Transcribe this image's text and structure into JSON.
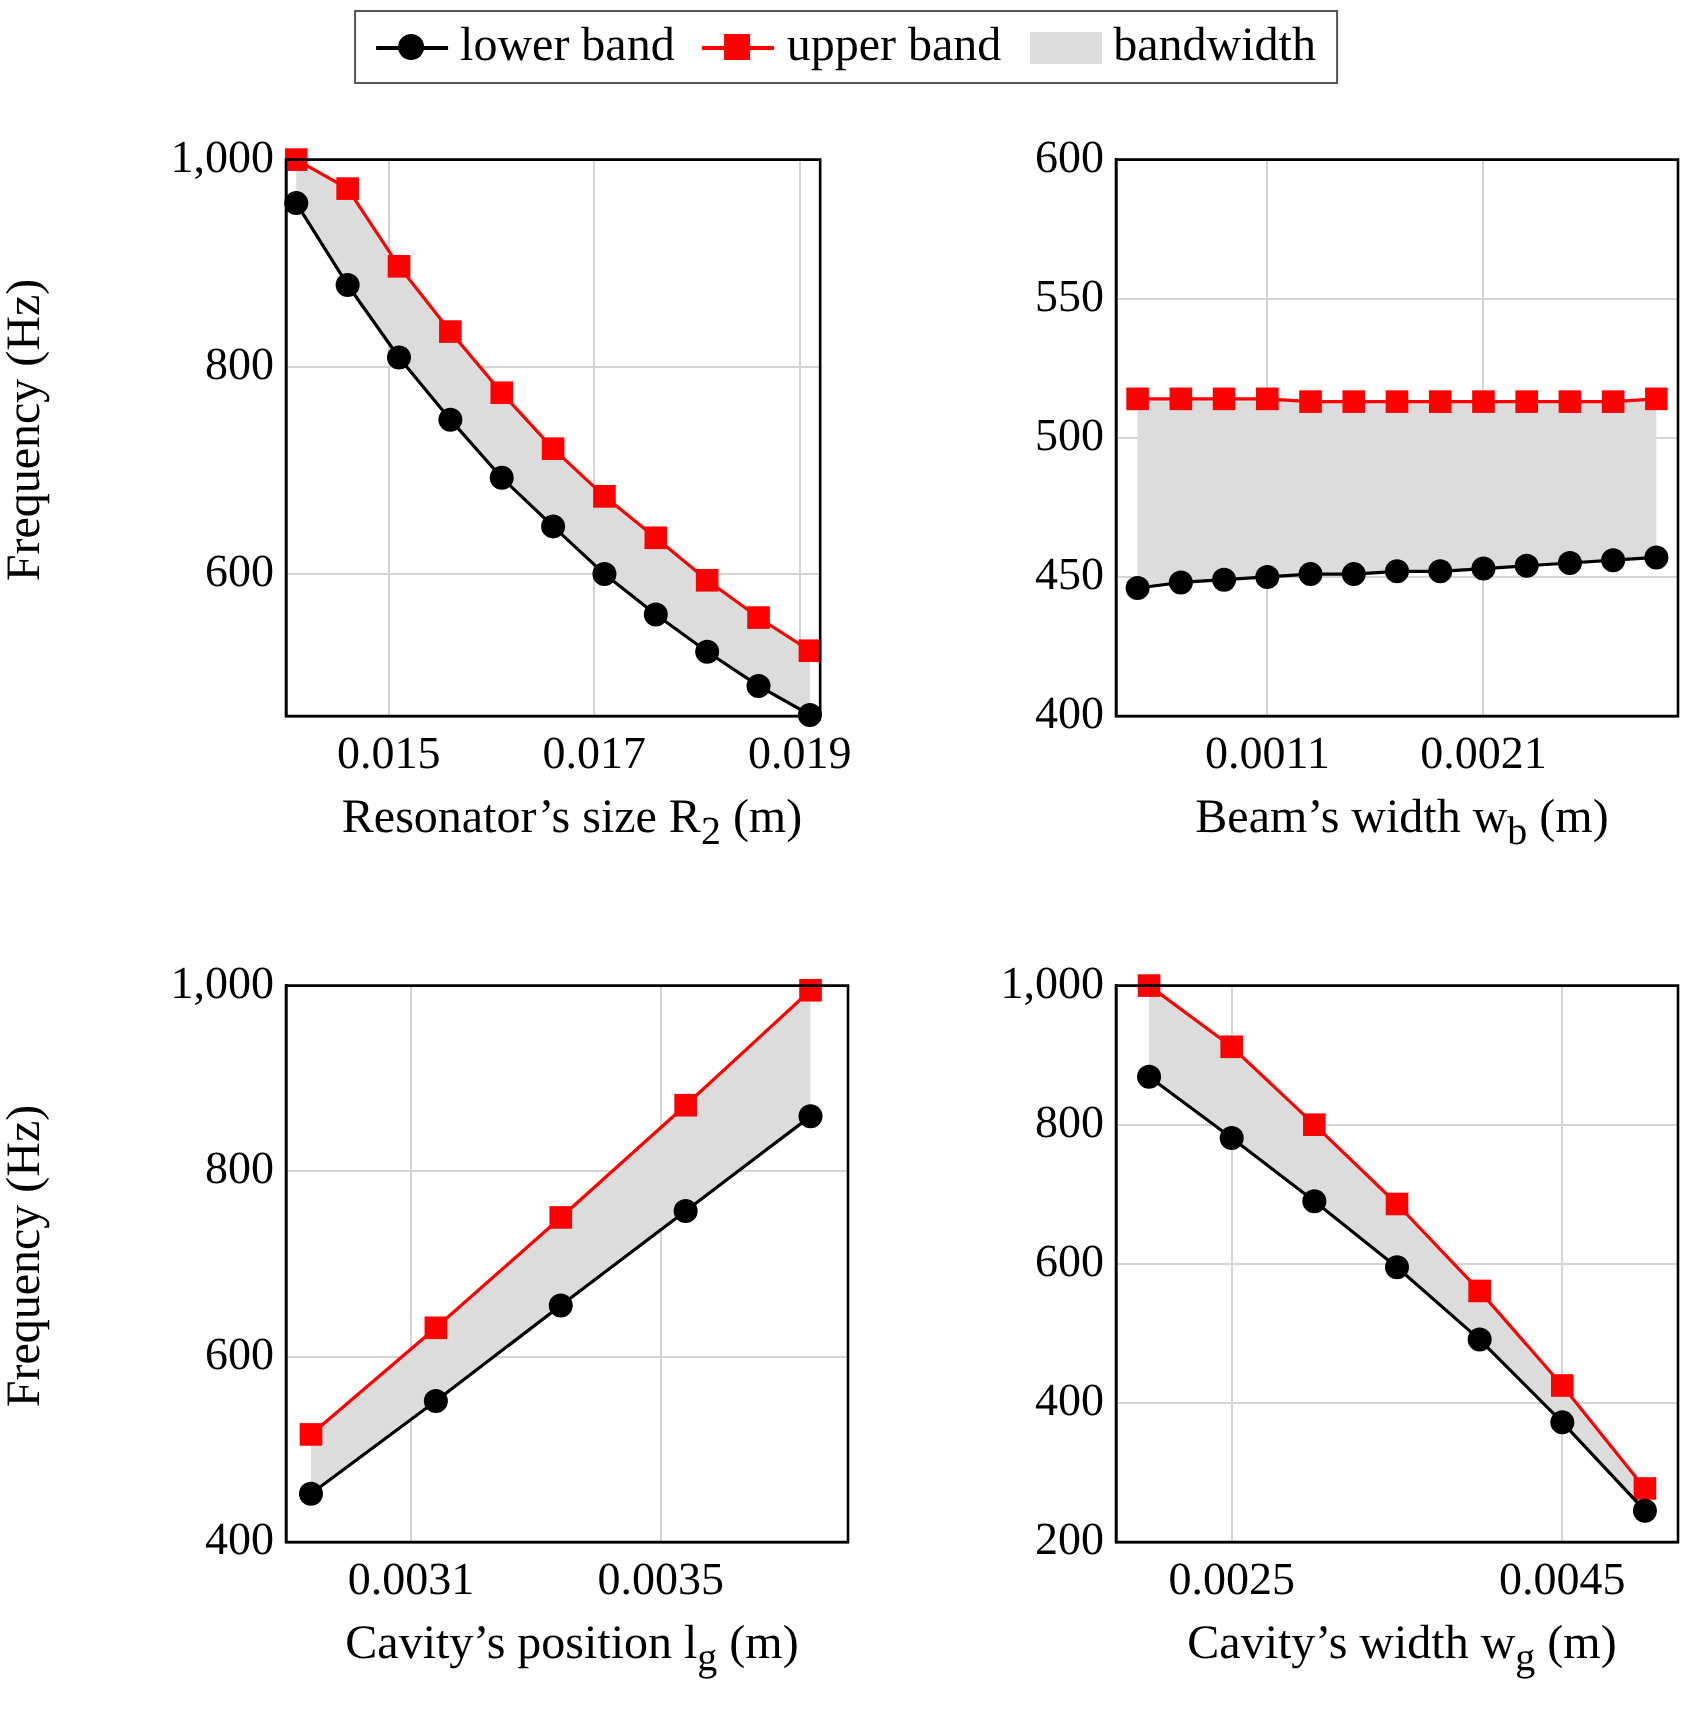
{
  "chart_data": [
    {
      "type": "line",
      "xlabel": "Resonator’s size R$_{2}$ (m)",
      "ylabel": "Frequency (Hz)",
      "x": [
        0.0141,
        0.0146,
        0.0151,
        0.0156,
        0.0161,
        0.0166,
        0.0171,
        0.0176,
        0.0181,
        0.0186,
        0.0191
      ],
      "xlim": [
        0.014,
        0.0192
      ],
      "xticks": [
        0.015,
        0.017,
        0.019
      ],
      "ylim": [
        463,
        1000
      ],
      "yticks": [
        {
          "value": 600,
          "label": "600"
        },
        {
          "value": 800,
          "label": "800"
        },
        {
          "value": 1000,
          "label": "1,000"
        }
      ],
      "grid": true,
      "legend": "top",
      "series": [
        {
          "name": "bandwidth",
          "type": "area",
          "color": "#dcdcdc",
          "values": [
            null,
            null,
            null,
            null,
            null,
            null,
            null,
            null,
            null,
            null,
            null
          ],
          "lower": [
            958,
            879,
            809,
            749,
            693,
            646,
            600,
            561,
            525,
            492,
            464
          ],
          "upper": [
            1000,
            972,
            897,
            834,
            775,
            721,
            675,
            635,
            594,
            558,
            526
          ]
        },
        {
          "name": "lower band",
          "color": "#000000",
          "marker": "circle",
          "values": [
            958,
            879,
            809,
            749,
            693,
            646,
            600,
            561,
            525,
            492,
            464
          ]
        },
        {
          "name": "upper band",
          "color": "#ff0000",
          "marker": "square",
          "values": [
            1000,
            972,
            897,
            834,
            775,
            721,
            675,
            635,
            594,
            558,
            526
          ]
        }
      ]
    },
    {
      "type": "line",
      "xlabel": "Beam’s width w$_{b}$ (m)",
      "x": [
        0.0005,
        0.0007,
        0.0009,
        0.0011,
        0.0013,
        0.0015,
        0.0017,
        0.0019,
        0.0021,
        0.0023,
        0.0025,
        0.0027,
        0.0029
      ],
      "xlim": [
        0.0004,
        0.003
      ],
      "xticks": [
        0.0011,
        0.0021
      ],
      "ylim": [
        400,
        600
      ],
      "yticks": [
        400,
        450,
        500,
        550,
        600
      ],
      "grid": true,
      "series": [
        {
          "type": "area",
          "color": "#dcdcdc",
          "values": [
            null,
            null,
            null,
            null,
            null,
            null,
            null,
            null,
            null,
            null,
            null,
            null,
            null
          ],
          "lower": [
            446,
            448,
            449,
            450,
            451,
            451,
            452,
            452,
            453,
            454,
            455,
            456,
            457
          ],
          "upper": [
            514,
            514,
            514,
            514,
            513,
            513,
            513,
            513,
            513,
            513,
            513,
            513,
            514
          ]
        },
        {
          "color": "#000000",
          "marker": "circle",
          "values": [
            446,
            448,
            449,
            450,
            451,
            451,
            452,
            452,
            453,
            454,
            455,
            456,
            457
          ]
        },
        {
          "color": "#ff0000",
          "marker": "square",
          "values": [
            514,
            514,
            514,
            514,
            513,
            513,
            513,
            513,
            513,
            513,
            513,
            513,
            514
          ]
        }
      ]
    },
    {
      "type": "line",
      "xlabel": "Cavity’s position l$_{g}$ (m)",
      "ylabel": "Frequency (Hz)",
      "x": [
        0.00294,
        0.00314,
        0.00334,
        0.00354,
        0.00374
      ],
      "xlim": [
        0.0029,
        0.0038
      ],
      "xticks": [
        0.0031,
        0.0035
      ],
      "ylim": [
        400,
        1000
      ],
      "yticks": [
        {
          "value": 400,
          "label": "400"
        },
        {
          "value": 600,
          "label": "600"
        },
        {
          "value": 800,
          "label": "800"
        },
        {
          "value": 1000,
          "label": "1,000"
        }
      ],
      "grid": true,
      "series": [
        {
          "type": "area",
          "color": "#dcdcdc",
          "values": [
            null,
            null,
            null,
            null,
            null
          ],
          "lower": [
            452,
            552,
            655,
            757,
            859
          ],
          "upper": [
            516,
            631,
            750,
            871,
            995
          ]
        },
        {
          "color": "#000000",
          "marker": "circle",
          "values": [
            452,
            552,
            655,
            757,
            859
          ]
        },
        {
          "color": "#ff0000",
          "marker": "square",
          "values": [
            516,
            631,
            750,
            871,
            995
          ]
        }
      ]
    },
    {
      "type": "line",
      "xlabel": "Cavity’s width w$_{g}$ (m)",
      "x": [
        0.002,
        0.0025,
        0.003,
        0.0035,
        0.004,
        0.0045,
        0.005
      ],
      "xlim": [
        0.0018,
        0.0052
      ],
      "xticks": [
        0.0025,
        0.0045
      ],
      "ylim": [
        200,
        1000
      ],
      "yticks": [
        {
          "value": 200,
          "label": "200"
        },
        {
          "value": 400,
          "label": "400"
        },
        {
          "value": 600,
          "label": "600"
        },
        {
          "value": 800,
          "label": "800"
        },
        {
          "value": 1000,
          "label": "1,000"
        }
      ],
      "grid": true,
      "series": [
        {
          "type": "area",
          "color": "#dcdcdc",
          "values": [
            null,
            null,
            null,
            null,
            null,
            null,
            null
          ],
          "lower": [
            869,
            781,
            690,
            595,
            491,
            372,
            245
          ],
          "upper": [
            1000,
            912,
            800,
            686,
            561,
            425,
            277
          ]
        },
        {
          "color": "#000000",
          "marker": "circle",
          "values": [
            869,
            781,
            690,
            595,
            491,
            372,
            245
          ]
        },
        {
          "color": "#ff0000",
          "marker": "square",
          "values": [
            1000,
            912,
            800,
            686,
            561,
            425,
            277
          ]
        }
      ]
    }
  ]
}
